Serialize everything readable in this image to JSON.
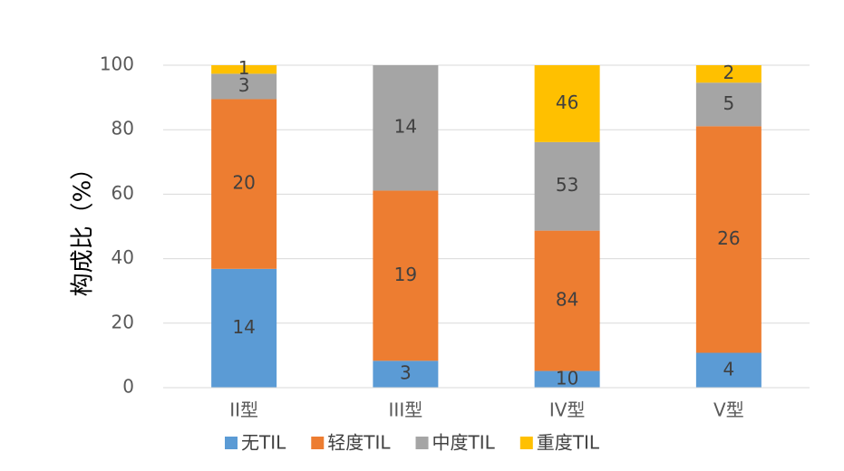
{
  "chart_data": {
    "type": "bar",
    "stacking": "percent",
    "y_label": "构成比（%）",
    "categories": [
      "II型",
      "III型",
      "IV型",
      "V型"
    ],
    "series": [
      {
        "name": "无TIL",
        "color": "#5b9bd5",
        "values": [
          14,
          3,
          10,
          4
        ]
      },
      {
        "name": "轻度TIL",
        "color": "#ed7d31",
        "values": [
          20,
          19,
          84,
          26
        ]
      },
      {
        "name": "中度TIL",
        "color": "#a5a5a5",
        "values": [
          3,
          14,
          53,
          5
        ]
      },
      {
        "name": "重度TIL",
        "color": "#ffc000",
        "values": [
          1,
          0,
          46,
          2
        ]
      }
    ],
    "ylim": [
      0,
      100
    ],
    "yticks": [
      0,
      20,
      40,
      60,
      80,
      100
    ],
    "grid": true,
    "legend": "bottom"
  }
}
